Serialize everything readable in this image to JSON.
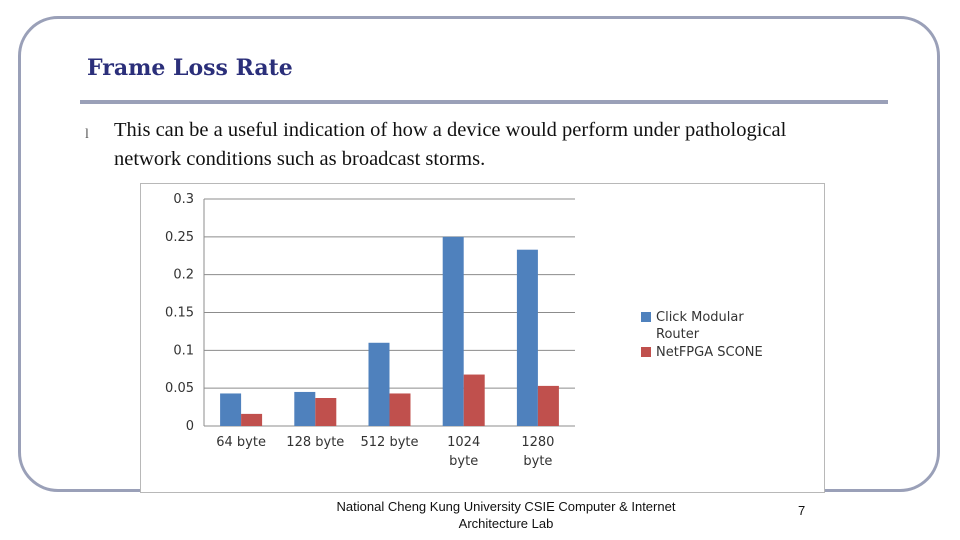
{
  "slide": {
    "title": "Frame Loss Rate",
    "bullet_symbol": "l",
    "bullet_text": "This can be a useful indication of how a device would perform under pathological network conditions such as broadcast storms.",
    "footer": "National Cheng Kung University CSIE Computer & Internet Architecture Lab",
    "page_number": "7"
  },
  "colors": {
    "title": "#2b2f7a",
    "frame": "#9aa0b8",
    "series_1": "#4f81bd",
    "series_2": "#c0504d"
  },
  "chart_data": {
    "type": "bar",
    "categories": [
      "64 byte",
      "128 byte",
      "512 byte",
      "1024 byte",
      "1280 byte"
    ],
    "category_lines": [
      [
        "64 byte"
      ],
      [
        "128 byte"
      ],
      [
        "512 byte"
      ],
      [
        "1024",
        "byte"
      ],
      [
        "1280",
        "byte"
      ]
    ],
    "series": [
      {
        "name": "Click Modular Router",
        "name_lines": [
          "Click Modular",
          "Router"
        ],
        "values": [
          0.043,
          0.045,
          0.11,
          0.25,
          0.233
        ]
      },
      {
        "name": "NetFPGA SCONE",
        "name_lines": [
          "NetFPGA SCONE"
        ],
        "values": [
          0.016,
          0.037,
          0.043,
          0.068,
          0.053
        ]
      }
    ],
    "y_ticks": [
      "0",
      "0.05",
      "0.1",
      "0.15",
      "0.2",
      "0.25",
      "0.3"
    ],
    "ylim": [
      0,
      0.3
    ],
    "grid": true,
    "legend_position": "right"
  }
}
